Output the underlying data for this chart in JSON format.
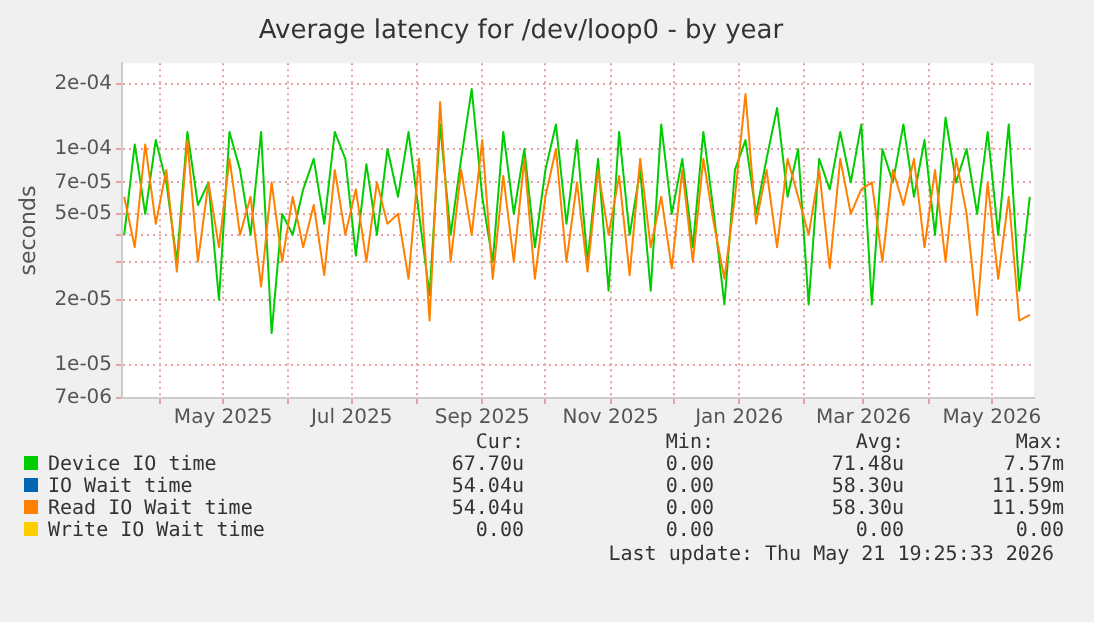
{
  "chart_data": {
    "type": "line",
    "title": "Average latency for /dev/loop0 - by year",
    "ylabel": "seconds",
    "x": [
      "2025-03-15",
      "2025-03-20",
      "2025-03-25",
      "2025-03-30",
      "2025-04-04",
      "2025-04-09",
      "2025-04-14",
      "2025-04-19",
      "2025-04-24",
      "2025-04-29",
      "2025-05-04",
      "2025-05-09",
      "2025-05-14",
      "2025-05-19",
      "2025-05-24",
      "2025-05-29",
      "2025-06-03",
      "2025-06-08",
      "2025-06-13",
      "2025-06-18",
      "2025-06-23",
      "2025-06-28",
      "2025-07-03",
      "2025-07-08",
      "2025-07-13",
      "2025-07-18",
      "2025-07-23",
      "2025-07-28",
      "2025-08-02",
      "2025-08-07",
      "2025-08-12",
      "2025-08-17",
      "2025-08-22",
      "2025-08-27",
      "2025-09-01",
      "2025-09-06",
      "2025-09-11",
      "2025-09-16",
      "2025-09-21",
      "2025-09-26",
      "2025-10-01",
      "2025-10-06",
      "2025-10-11",
      "2025-10-16",
      "2025-10-21",
      "2025-10-26",
      "2025-10-31",
      "2025-11-05",
      "2025-11-10",
      "2025-11-15",
      "2025-11-20",
      "2025-11-25",
      "2025-11-30",
      "2025-12-05",
      "2025-12-10",
      "2025-12-15",
      "2025-12-20",
      "2025-12-25",
      "2025-12-30",
      "2026-01-04",
      "2026-01-09",
      "2026-01-14",
      "2026-01-19",
      "2026-01-24",
      "2026-01-29",
      "2026-02-03",
      "2026-02-08",
      "2026-02-13",
      "2026-02-18",
      "2026-02-23",
      "2026-02-28",
      "2026-03-05",
      "2026-03-10",
      "2026-03-15",
      "2026-03-20",
      "2026-03-25",
      "2026-03-30",
      "2026-04-04",
      "2026-04-09",
      "2026-04-14",
      "2026-04-19",
      "2026-04-24",
      "2026-04-29",
      "2026-05-04",
      "2026-05-09",
      "2026-05-14",
      "2026-05-19"
    ],
    "series": [
      {
        "name": "Device IO time",
        "color": "#00cc00",
        "values": [
          4e-05,
          0.000105,
          5e-05,
          0.00011,
          7e-05,
          3e-05,
          0.00012,
          5.5e-05,
          7e-05,
          2e-05,
          0.00012,
          8e-05,
          4e-05,
          0.00012,
          1.4e-05,
          5e-05,
          4e-05,
          6.5e-05,
          9e-05,
          4.5e-05,
          0.00012,
          9e-05,
          3.2e-05,
          8.5e-05,
          4e-05,
          0.0001,
          6e-05,
          0.00012,
          5e-05,
          2.1e-05,
          0.00013,
          4e-05,
          9e-05,
          0.00019,
          6e-05,
          3e-05,
          0.00012,
          5e-05,
          0.0001,
          3.5e-05,
          8e-05,
          0.00013,
          4.5e-05,
          0.00011,
          3e-05,
          9e-05,
          2.2e-05,
          0.00012,
          4e-05,
          8e-05,
          2.2e-05,
          0.00013,
          5e-05,
          9e-05,
          3.5e-05,
          0.00012,
          5e-05,
          1.9e-05,
          8e-05,
          0.00011,
          5e-05,
          9e-05,
          0.000155,
          6e-05,
          0.0001,
          1.9e-05,
          9e-05,
          6.5e-05,
          0.00012,
          7e-05,
          0.00013,
          1.9e-05,
          0.0001,
          7e-05,
          0.00013,
          6e-05,
          0.00011,
          4e-05,
          0.00014,
          7e-05,
          0.0001,
          5e-05,
          0.00012,
          4e-05,
          0.00013,
          2.2e-05,
          6e-05
        ]
      },
      {
        "name": "IO Wait time",
        "color": "#0066b3",
        "values": [
          null,
          null,
          null,
          null,
          null,
          null,
          null,
          null,
          null,
          null,
          null,
          null,
          null,
          null,
          null,
          null,
          null,
          null,
          null,
          null,
          null,
          null,
          null,
          null,
          null,
          null,
          null,
          null,
          null,
          null,
          null,
          null,
          null,
          null,
          null,
          null,
          null,
          null,
          null,
          null,
          null,
          null,
          null,
          null,
          null,
          null,
          null,
          null,
          null,
          null,
          null,
          null,
          null,
          null,
          null,
          null,
          null,
          null,
          null,
          null,
          null,
          null,
          null,
          null,
          null,
          null,
          null,
          null,
          null,
          null,
          null,
          null,
          null,
          null,
          null,
          null,
          null,
          null,
          null,
          null,
          null,
          null,
          null,
          null,
          null,
          null,
          null
        ]
      },
      {
        "name": "Read IO Wait time",
        "color": "#ff8000",
        "values": [
          6e-05,
          3.5e-05,
          0.000105,
          4.5e-05,
          8e-05,
          2.7e-05,
          0.00011,
          3e-05,
          7e-05,
          3.5e-05,
          9e-05,
          4e-05,
          6e-05,
          2.3e-05,
          7e-05,
          3e-05,
          6e-05,
          3.5e-05,
          5.5e-05,
          2.6e-05,
          8e-05,
          4e-05,
          6.5e-05,
          3e-05,
          7e-05,
          4.5e-05,
          5e-05,
          2.5e-05,
          9e-05,
          1.6e-05,
          0.000165,
          3e-05,
          8e-05,
          4e-05,
          0.00011,
          2.5e-05,
          7.5e-05,
          3e-05,
          9e-05,
          2.5e-05,
          6e-05,
          0.0001,
          3e-05,
          7e-05,
          2.7e-05,
          8e-05,
          4e-05,
          7.5e-05,
          2.6e-05,
          9e-05,
          3.5e-05,
          6e-05,
          2.8e-05,
          8e-05,
          3e-05,
          9e-05,
          4.5e-05,
          2.5e-05,
          6e-05,
          0.00018,
          4.5e-05,
          8e-05,
          3.5e-05,
          9e-05,
          6e-05,
          4e-05,
          8e-05,
          2.8e-05,
          9e-05,
          5e-05,
          6.5e-05,
          7e-05,
          3e-05,
          8e-05,
          5.5e-05,
          9e-05,
          3.5e-05,
          8e-05,
          3e-05,
          9e-05,
          5e-05,
          1.7e-05,
          7e-05,
          2.5e-05,
          6e-05,
          1.6e-05,
          1.7e-05
        ]
      },
      {
        "name": "Write IO Wait time",
        "color": "#ffcc00",
        "values": [
          null,
          null,
          null,
          null,
          null,
          null,
          null,
          null,
          null,
          null,
          null,
          null,
          null,
          null,
          null,
          null,
          null,
          null,
          null,
          null,
          null,
          null,
          null,
          null,
          null,
          null,
          null,
          null,
          null,
          null,
          null,
          null,
          null,
          null,
          null,
          null,
          null,
          null,
          null,
          null,
          null,
          null,
          null,
          null,
          null,
          null,
          null,
          null,
          null,
          null,
          null,
          null,
          null,
          null,
          null,
          null,
          null,
          null,
          null,
          null,
          null,
          null,
          null,
          null,
          null,
          null,
          null,
          null,
          null,
          null,
          null,
          null,
          null,
          null,
          null,
          null,
          null,
          null,
          null,
          null,
          null,
          null,
          null,
          null,
          null,
          null,
          null
        ]
      }
    ],
    "xlim": [
      "2025-03-14",
      "2026-05-21"
    ],
    "xticks": [
      {
        "value": "2025-04-01",
        "label": null
      },
      {
        "value": "2025-05-01",
        "label": "May 2025"
      },
      {
        "value": "2025-06-01",
        "label": null
      },
      {
        "value": "2025-07-01",
        "label": "Jul 2025"
      },
      {
        "value": "2025-08-01",
        "label": null
      },
      {
        "value": "2025-09-01",
        "label": "Sep 2025"
      },
      {
        "value": "2025-10-01",
        "label": null
      },
      {
        "value": "2025-11-01",
        "label": "Nov 2025"
      },
      {
        "value": "2025-12-01",
        "label": null
      },
      {
        "value": "2026-01-01",
        "label": "Jan 2026"
      },
      {
        "value": "2026-02-01",
        "label": null
      },
      {
        "value": "2026-03-01",
        "label": "Mar 2026"
      },
      {
        "value": "2026-04-01",
        "label": null
      },
      {
        "value": "2026-05-01",
        "label": "May 2026"
      }
    ],
    "ylim": [
      7e-06,
      0.00025
    ],
    "log": true,
    "yticks": [
      {
        "value": 7e-06,
        "label": "7e-06"
      },
      {
        "value": 1e-05,
        "label": "1e-05"
      },
      {
        "value": 2e-05,
        "label": "2e-05"
      },
      {
        "value": 3e-05,
        "label": null
      },
      {
        "value": 4e-05,
        "label": null
      },
      {
        "value": 5e-05,
        "label": "5e-05"
      },
      {
        "value": 7e-05,
        "label": "7e-05"
      },
      {
        "value": 0.0001,
        "label": "1e-04"
      },
      {
        "value": 0.0002,
        "label": "2e-04"
      }
    ],
    "grid": true,
    "legend": "bottom",
    "marker": "none",
    "annotations": [
      "Cur:",
      "Min:",
      "Avg:",
      "Max:",
      "67.70u",
      "0.00",
      "71.48u",
      "7.57m",
      "54.04u",
      "0.00",
      "58.30u",
      "11.59m",
      "54.04u",
      "0.00",
      "58.30u",
      "11.59m",
      "0.00",
      "0.00",
      "0.00",
      "0.00",
      "Last update: Thu May 21 19:25:33 2026"
    ]
  }
}
